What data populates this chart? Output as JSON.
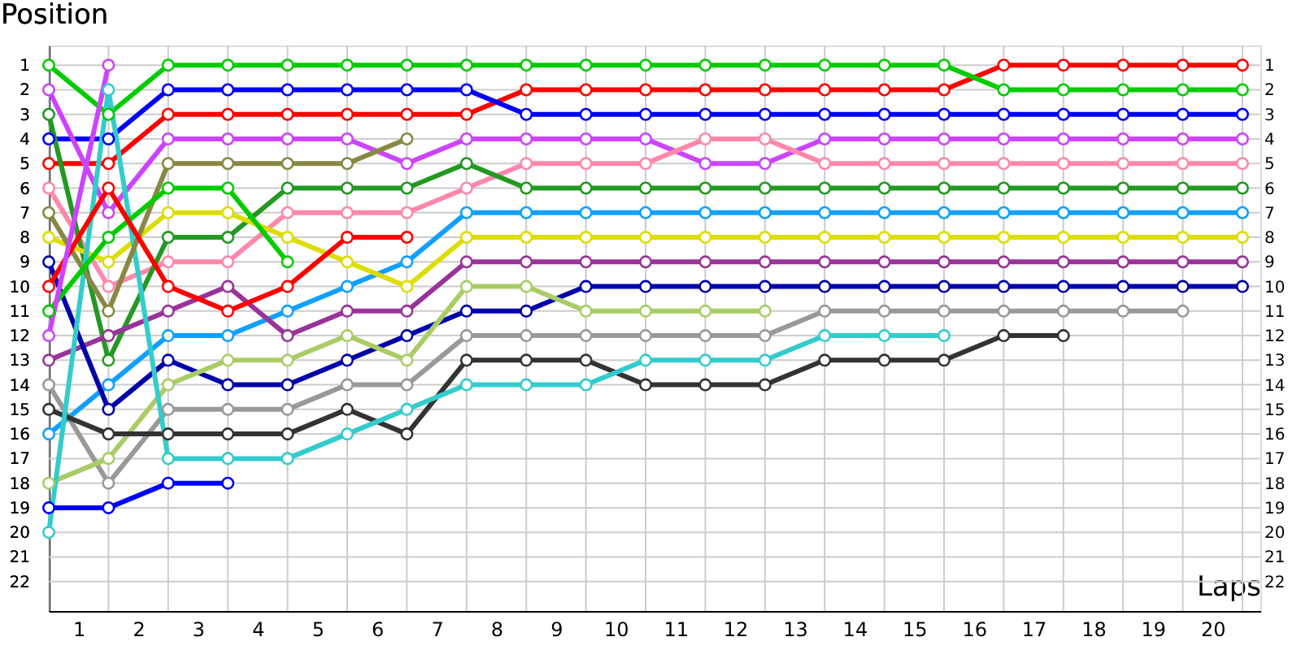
{
  "chart_data": {
    "type": "line",
    "xlabel": "Laps",
    "ylabel": "Position",
    "x": [
      0,
      1,
      2,
      3,
      4,
      5,
      6,
      7,
      8,
      9,
      10,
      11,
      12,
      13,
      14,
      15,
      16,
      17,
      18,
      19,
      20
    ],
    "xlim": [
      0,
      20.3
    ],
    "xticks": [
      {
        "value": 0,
        "label": null
      },
      {
        "value": 0.5,
        "label": "1"
      },
      {
        "value": 1,
        "label": null
      },
      {
        "value": 1.5,
        "label": "2"
      },
      {
        "value": 2,
        "label": null
      },
      {
        "value": 2.5,
        "label": "3"
      },
      {
        "value": 3,
        "label": null
      },
      {
        "value": 3.5,
        "label": "4"
      },
      {
        "value": 4,
        "label": null
      },
      {
        "value": 4.5,
        "label": "5"
      },
      {
        "value": 5,
        "label": null
      },
      {
        "value": 5.5,
        "label": "6"
      },
      {
        "value": 6,
        "label": null
      },
      {
        "value": 6.5,
        "label": "7"
      },
      {
        "value": 7,
        "label": null
      },
      {
        "value": 7.5,
        "label": "8"
      },
      {
        "value": 8,
        "label": null
      },
      {
        "value": 8.5,
        "label": "9"
      },
      {
        "value": 9,
        "label": null
      },
      {
        "value": 9.5,
        "label": "10"
      },
      {
        "value": 10,
        "label": null
      },
      {
        "value": 10.5,
        "label": "11"
      },
      {
        "value": 11,
        "label": null
      },
      {
        "value": 11.5,
        "label": "12"
      },
      {
        "value": 12,
        "label": null
      },
      {
        "value": 12.5,
        "label": "13"
      },
      {
        "value": 13,
        "label": null
      },
      {
        "value": 13.5,
        "label": "14"
      },
      {
        "value": 14,
        "label": null
      },
      {
        "value": 14.5,
        "label": "15"
      },
      {
        "value": 15,
        "label": null
      },
      {
        "value": 15.5,
        "label": "16"
      },
      {
        "value": 16,
        "label": null
      },
      {
        "value": 16.5,
        "label": "17"
      },
      {
        "value": 17,
        "label": null
      },
      {
        "value": 17.5,
        "label": "18"
      },
      {
        "value": 18,
        "label": null
      },
      {
        "value": 18.5,
        "label": "19"
      },
      {
        "value": 19,
        "label": null
      },
      {
        "value": 19.5,
        "label": "20"
      },
      {
        "value": 20,
        "label": null
      }
    ],
    "ylim": [
      23.2,
      0.2
    ],
    "yticks": [
      1,
      2,
      3,
      4,
      5,
      6,
      7,
      8,
      9,
      10,
      11,
      12,
      13,
      14,
      15,
      16,
      17,
      18,
      19,
      20,
      21,
      22
    ],
    "y2lim": [
      23.2,
      0.2
    ],
    "y2ticks": [
      1,
      2,
      3,
      4,
      5,
      6,
      7,
      8,
      9,
      10,
      11,
      12,
      13,
      14,
      15,
      16,
      17,
      18,
      19,
      20,
      21,
      22
    ],
    "grid": true,
    "marker": "circle",
    "line_style": "solid",
    "series": [
      {
        "color": "#ff0000",
        "values": [
          5,
          5,
          3,
          3,
          3,
          3,
          3,
          3,
          2,
          2,
          2,
          2,
          2,
          2,
          2,
          2,
          1,
          1,
          1,
          1,
          1
        ]
      },
      {
        "color": "#00cc00",
        "values": [
          1,
          3,
          1,
          1,
          1,
          1,
          1,
          1,
          1,
          1,
          1,
          1,
          1,
          1,
          1,
          1,
          2,
          2,
          2,
          2,
          2
        ]
      },
      {
        "color": "#0000ff",
        "values": [
          4,
          4,
          2,
          2,
          2,
          2,
          2,
          2,
          3,
          3,
          3,
          3,
          3,
          3,
          3,
          3,
          3,
          3,
          3,
          3,
          3
        ]
      },
      {
        "color": "#cc44ff",
        "values": [
          2,
          7,
          4,
          4,
          4,
          4,
          5,
          4,
          4,
          4,
          4,
          5,
          5,
          4,
          4,
          4,
          4,
          4,
          4,
          4,
          4
        ]
      },
      {
        "color": "#ff88aa",
        "values": [
          6,
          10,
          9,
          9,
          7,
          7,
          7,
          6,
          5,
          5,
          5,
          4,
          4,
          5,
          5,
          5,
          5,
          5,
          5,
          5,
          5
        ]
      },
      {
        "color": "#229922",
        "values": [
          3,
          13,
          8,
          8,
          6,
          6,
          6,
          5,
          6,
          6,
          6,
          6,
          6,
          6,
          6,
          6,
          6,
          6,
          6,
          6,
          6
        ]
      },
      {
        "color": "#11a0ff",
        "values": [
          16,
          14,
          12,
          12,
          11,
          10,
          9,
          7,
          7,
          7,
          7,
          7,
          7,
          7,
          7,
          7,
          7,
          7,
          7,
          7,
          7
        ]
      },
      {
        "color": "#dddd00",
        "values": [
          8,
          9,
          7,
          7,
          8,
          9,
          10,
          8,
          8,
          8,
          8,
          8,
          8,
          8,
          8,
          8,
          8,
          8,
          8,
          8,
          8
        ]
      },
      {
        "color": "#993399",
        "values": [
          13,
          12,
          11,
          10,
          12,
          11,
          11,
          9,
          9,
          9,
          9,
          9,
          9,
          9,
          9,
          9,
          9,
          9,
          9,
          9,
          9
        ]
      },
      {
        "color": "#0000aa",
        "values": [
          9,
          15,
          13,
          14,
          14,
          13,
          12,
          11,
          11,
          10,
          10,
          10,
          10,
          10,
          10,
          10,
          10,
          10,
          10,
          10,
          10
        ]
      },
      {
        "color": "#999999",
        "values": [
          14,
          18,
          15,
          15,
          15,
          14,
          14,
          12,
          12,
          12,
          12,
          12,
          12,
          11,
          11,
          11,
          11,
          11,
          11,
          11,
          null
        ]
      },
      {
        "color": "#aacc66",
        "values": [
          18,
          17,
          14,
          13,
          13,
          12,
          13,
          10,
          10,
          11,
          11,
          11,
          11,
          null,
          null,
          null,
          null,
          null,
          null,
          null,
          null
        ]
      },
      {
        "color": "#333333",
        "values": [
          15,
          16,
          16,
          16,
          16,
          15,
          16,
          13,
          13,
          13,
          14,
          14,
          14,
          13,
          13,
          13,
          12,
          12,
          null,
          null,
          null
        ]
      },
      {
        "color": "#33cccc",
        "values": [
          20,
          2,
          17,
          17,
          17,
          16,
          15,
          14,
          14,
          14,
          13,
          13,
          13,
          12,
          12,
          12,
          null,
          null,
          null,
          null,
          null
        ]
      },
      {
        "color": "#888844",
        "values": [
          7,
          11,
          5,
          5,
          5,
          5,
          4,
          null,
          null,
          null,
          null,
          null,
          null,
          null,
          null,
          null,
          null,
          null,
          null,
          null,
          null
        ]
      },
      {
        "color": "#00cc00",
        "values": [
          11,
          8,
          6,
          6,
          9,
          null,
          null,
          null,
          null,
          null,
          null,
          null,
          null,
          null,
          null,
          null,
          null,
          null,
          null,
          null,
          null
        ]
      },
      {
        "color": "#ff0000",
        "values": [
          10,
          6,
          10,
          11,
          10,
          8,
          8,
          null,
          null,
          null,
          null,
          null,
          null,
          null,
          null,
          null,
          null,
          null,
          null,
          null,
          null
        ]
      },
      {
        "color": "#0000ff",
        "values": [
          19,
          19,
          18,
          18,
          null,
          null,
          null,
          null,
          null,
          null,
          null,
          null,
          null,
          null,
          null,
          null,
          null,
          null,
          null,
          null,
          null
        ]
      },
      {
        "color": "#cc44ff",
        "values": [
          12,
          1,
          null,
          null,
          null,
          null,
          null,
          null,
          null,
          null,
          null,
          null,
          null,
          null,
          null,
          null,
          null,
          null,
          null,
          null,
          null
        ]
      }
    ]
  }
}
